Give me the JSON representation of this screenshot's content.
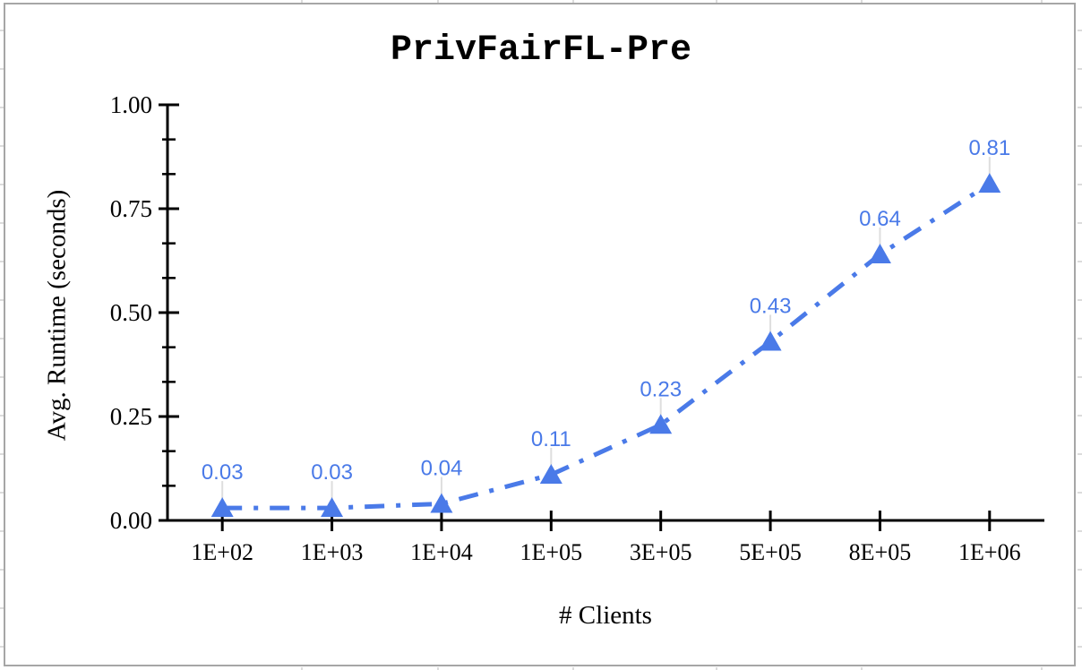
{
  "chart_data": {
    "type": "line",
    "title": "PrivFairFL-Pre",
    "xlabel": "# Clients",
    "ylabel": "Avg. Runtime (seconds)",
    "categories": [
      "1E+02",
      "1E+03",
      "1E+04",
      "1E+05",
      "3E+05",
      "5E+05",
      "8E+05",
      "1E+06"
    ],
    "values": [
      0.03,
      0.03,
      0.04,
      0.11,
      0.23,
      0.43,
      0.64,
      0.81
    ],
    "point_labels": [
      "0.03",
      "0.03",
      "0.04",
      "0.11",
      "0.23",
      "0.43",
      "0.64",
      "0.81"
    ],
    "y_tick_labels": [
      "0.00",
      "0.25",
      "0.50",
      "0.75",
      "1.00"
    ],
    "ylim": [
      0,
      1.0
    ],
    "y_minor_ticks_per_interval": 2,
    "grid": false,
    "legend_position": "none",
    "line_style": "dash-dot",
    "marker": "triangle-up",
    "colors": {
      "series": "#4a7ae8",
      "data_label": "#4a7ae8",
      "axis": "#000000",
      "tick_label": "#000000",
      "title": "#000000",
      "callout": "#dedede",
      "chart_border": "#a6a6a6",
      "sheet_gridline": "#dcdcdc",
      "background": "#ffffff"
    }
  }
}
